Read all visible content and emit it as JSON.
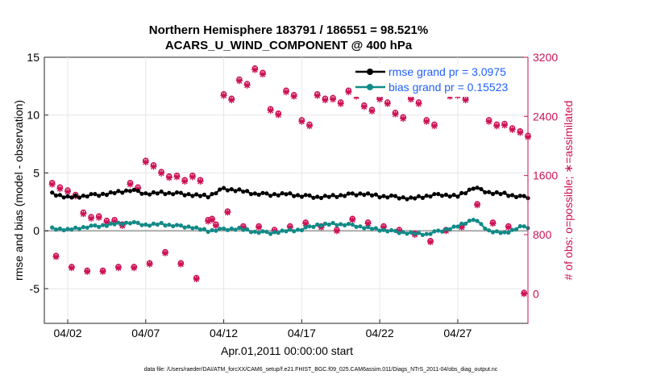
{
  "chart_data": {
    "type": "line",
    "title_line1": "Northern Hemisphere 183791 / 186551 = 98.521%",
    "title_line2": "ACARS_U_WIND_COMPONENT @ 400 hPa",
    "xlabel": "Apr.01,2011 00:00:00 start",
    "ylabel_left": "rmse and bias (model - observation)",
    "ylabel_right": "# of obs: o=possible; ∗=assimilated",
    "footer": "data file: /Users/raeder/DAI/ATM_forcXX/CAM6_setup/f.e21.FHIST_BGC.f09_025.CAM6assim.011/Diags_NTrS_2011-04/obs_diag_output.nc",
    "xlim": [
      0.5,
      31.5
    ],
    "ylim_left": [
      -8,
      15
    ],
    "ylim_right": [
      -400,
      3200
    ],
    "x_ticks": [
      2,
      7,
      12,
      17,
      22,
      27
    ],
    "x_tick_labels": [
      "04/02",
      "04/07",
      "04/12",
      "04/17",
      "04/22",
      "04/27"
    ],
    "y_left_ticks": [
      -5,
      0,
      5,
      10,
      15
    ],
    "y_left_tick_labels": [
      "-5",
      "0",
      "5",
      "10",
      "15"
    ],
    "y_right_ticks": [
      0,
      800,
      1600,
      2400,
      3200
    ],
    "y_right_tick_labels": [
      "0",
      "800",
      "1600",
      "2400",
      "3200"
    ],
    "grid": true,
    "legend": [
      {
        "name": "rmse grand pr = 3.0975",
        "color": "#000000"
      },
      {
        "name": "bias grand pr = 0.15523",
        "color": "#118a87"
      }
    ],
    "colors": {
      "rmse": "#000000",
      "bias": "#118a87",
      "obs": "#cc1155",
      "zero": "#aaaaaa"
    },
    "rmse_daily": [
      3.2,
      2.9,
      3.0,
      3.1,
      3.3,
      3.5,
      3.2,
      3.3,
      3.2,
      3.1,
      3.0,
      3.6,
      3.5,
      3.2,
      3.1,
      3.2,
      3.0,
      2.9,
      3.0,
      3.1,
      3.2,
      3.0,
      2.9,
      2.8,
      3.0,
      3.1,
      3.0,
      3.7,
      3.3,
      3.2,
      2.9
    ],
    "bias_daily": [
      0.2,
      0.1,
      0.3,
      0.4,
      0.6,
      0.7,
      0.5,
      0.6,
      0.4,
      0.3,
      0.0,
      0.1,
      0.2,
      -0.1,
      -0.2,
      0.0,
      0.1,
      0.5,
      0.6,
      0.5,
      0.3,
      0.1,
      -0.1,
      -0.2,
      -0.3,
      0.0,
      0.4,
      1.0,
      0.0,
      -0.2,
      0.3
    ],
    "obs_possible_daily": [
      1500,
      1400,
      1100,
      1050,
      1000,
      1500,
      1800,
      1650,
      1600,
      1600,
      1000,
      2700,
      2900,
      3050,
      2500,
      2750,
      2350,
      2700,
      2650,
      2750,
      2550,
      2650,
      2450,
      2650,
      2350,
      2750,
      2700,
      2800,
      2350,
      2300,
      2200
    ],
    "obs_assim_daily": [
      1480,
      1380,
      1080,
      1030,
      980,
      1480,
      1780,
      1630,
      1580,
      1580,
      980,
      2680,
      2880,
      3030,
      2480,
      2730,
      2330,
      2680,
      2630,
      2730,
      2530,
      2630,
      2430,
      2630,
      2330,
      2730,
      2680,
      2780,
      2330,
      2280,
      2180
    ],
    "obs_low_daily": [
      500,
      350,
      300,
      300,
      350,
      350,
      400,
      550,
      400,
      200,
      1000,
      1100,
      900,
      900,
      850,
      900,
      950,
      900,
      850,
      1000,
      950,
      900,
      850,
      800,
      700,
      850,
      900,
      1200,
      950,
      900,
      0
    ]
  }
}
